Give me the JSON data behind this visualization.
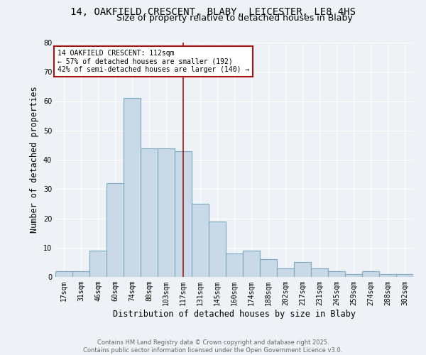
{
  "title": "14, OAKFIELD CRESCENT, BLABY, LEICESTER, LE8 4HS",
  "subtitle": "Size of property relative to detached houses in Blaby",
  "xlabel": "Distribution of detached houses by size in Blaby",
  "ylabel": "Number of detached properties",
  "categories": [
    "17sqm",
    "31sqm",
    "46sqm",
    "60sqm",
    "74sqm",
    "88sqm",
    "103sqm",
    "117sqm",
    "131sqm",
    "145sqm",
    "160sqm",
    "174sqm",
    "188sqm",
    "202sqm",
    "217sqm",
    "231sqm",
    "245sqm",
    "259sqm",
    "274sqm",
    "288sqm",
    "302sqm"
  ],
  "values": [
    2,
    2,
    9,
    32,
    61,
    44,
    44,
    43,
    25,
    19,
    8,
    9,
    6,
    3,
    5,
    3,
    2,
    1,
    2,
    1,
    1
  ],
  "bar_color": "#c9d9e8",
  "bar_edge_color": "#7aaabf",
  "bar_edge_width": 0.8,
  "vline_x_index": 7,
  "vline_color": "#aa1111",
  "ylim": [
    0,
    80
  ],
  "yticks": [
    0,
    10,
    20,
    30,
    40,
    50,
    60,
    70,
    80
  ],
  "annotation_text": "14 OAKFIELD CRESCENT: 112sqm\n← 57% of detached houses are smaller (192)\n42% of semi-detached houses are larger (140) →",
  "annotation_box_facecolor": "#ffffff",
  "annotation_box_edgecolor": "#aa1111",
  "background_color": "#eef2f7",
  "grid_color": "#ffffff",
  "footer_text": "Contains HM Land Registry data © Crown copyright and database right 2025.\nContains public sector information licensed under the Open Government Licence v3.0.",
  "title_fontsize": 10,
  "subtitle_fontsize": 9,
  "axis_label_fontsize": 8.5,
  "tick_fontsize": 7,
  "annotation_fontsize": 7,
  "footer_fontsize": 6
}
